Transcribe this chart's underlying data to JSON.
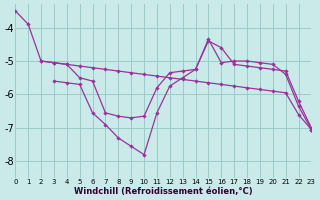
{
  "xlabel": "Windchill (Refroidissement éolien,°C)",
  "bg_color": "#caeaea",
  "line_color": "#993399",
  "grid_color": "#99cccc",
  "series": [
    {
      "x": [
        0,
        1,
        2,
        3,
        4,
        5,
        6,
        7,
        8,
        9,
        10,
        11,
        12,
        13,
        14,
        15,
        16,
        17,
        18,
        19,
        20,
        21,
        22,
        23
      ],
      "y": [
        -3.5,
        -3.9,
        -5.0,
        -5.05,
        -5.1,
        -5.15,
        -5.2,
        -5.25,
        -5.3,
        -5.35,
        -5.4,
        -5.45,
        -5.5,
        -5.55,
        -5.6,
        -5.65,
        -5.7,
        -5.75,
        -5.8,
        -5.85,
        -5.9,
        -5.95,
        -6.6,
        -7.05
      ]
    },
    {
      "x": [
        2,
        3,
        4,
        5,
        6,
        7,
        8,
        9,
        10,
        11,
        12,
        13,
        14,
        15,
        16,
        17,
        18,
        19,
        20,
        21,
        22,
        23
      ],
      "y": [
        -5.0,
        -5.05,
        -5.1,
        -5.5,
        -5.6,
        -6.55,
        -6.65,
        -6.7,
        -6.65,
        -5.8,
        -5.35,
        -5.3,
        -5.25,
        -4.4,
        -4.6,
        -5.1,
        -5.15,
        -5.2,
        -5.25,
        -5.3,
        -6.2,
        -7.0
      ]
    },
    {
      "x": [
        3,
        4,
        5,
        6,
        7,
        8,
        9,
        10,
        11,
        12,
        13,
        14,
        15,
        16,
        17,
        18,
        19,
        20,
        21,
        22,
        23
      ],
      "y": [
        -5.6,
        -5.65,
        -5.7,
        -6.55,
        -6.9,
        -7.3,
        -7.55,
        -7.8,
        -6.55,
        -5.75,
        -5.5,
        -5.25,
        -4.35,
        -5.05,
        -5.0,
        -5.0,
        -5.05,
        -5.1,
        -5.4,
        -6.35,
        -7.05
      ]
    }
  ],
  "xmin": 0,
  "xmax": 23,
  "ymin": -8.5,
  "ymax": -3.3,
  "yticks": [
    -8,
    -7,
    -6,
    -5,
    -4
  ],
  "xticks": [
    0,
    1,
    2,
    3,
    4,
    5,
    6,
    7,
    8,
    9,
    10,
    11,
    12,
    13,
    14,
    15,
    16,
    17,
    18,
    19,
    20,
    21,
    22,
    23
  ]
}
